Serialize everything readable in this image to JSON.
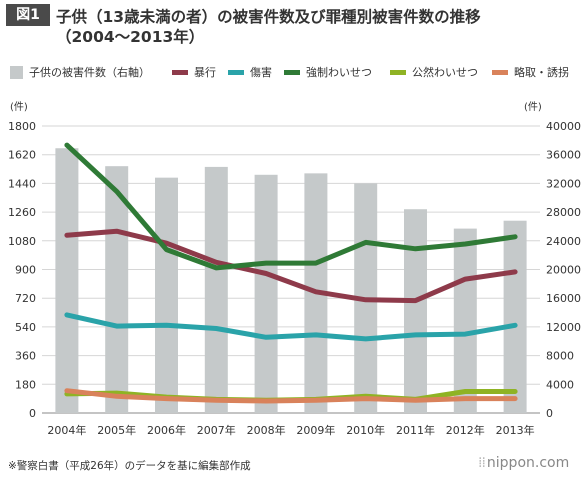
{
  "header": {
    "badge": "図1",
    "title_line1": "子供（13歳未満の者）の被害件数及び罪種別被害件数の推移",
    "title_line2": "（2004〜2013年）"
  },
  "footer": {
    "source": "※警察白書（平成26年）のデータを基に編集部作成",
    "logo": "nippon.com"
  },
  "chart_data": {
    "type": "bar+line",
    "title": "子供（13歳未満の者）の被害件数及び罪種別被害件数の推移（2004〜2013年）",
    "categories": [
      "2004年",
      "2005年",
      "2006年",
      "2007年",
      "2008年",
      "2009年",
      "2010年",
      "2011年",
      "2012年",
      "2013年"
    ],
    "left_axis": {
      "unit": "(件)",
      "min": 0,
      "max": 1800,
      "ticks": [
        "0",
        "180",
        "360",
        "540",
        "720",
        "900",
        "1080",
        "1260",
        "1440",
        "1620",
        "1800"
      ]
    },
    "right_axis": {
      "unit": "(件)",
      "min": 0,
      "max": 40000,
      "ticks": [
        "0",
        "4000",
        "8000",
        "12000",
        "16000",
        "20000",
        "24000",
        "28000",
        "32000",
        "36000",
        "40000"
      ]
    },
    "grid": true,
    "legend_position": "top",
    "bar_series": {
      "name": "子供の被害件数（右軸）",
      "color": "#c5c9ca",
      "axis": "right",
      "values": [
        36900,
        34400,
        32800,
        34300,
        33200,
        33400,
        32000,
        28400,
        25700,
        26800
      ]
    },
    "line_series": [
      {
        "name": "暴行",
        "color": "#8e3a4a",
        "values": [
          1115,
          1140,
          1065,
          945,
          875,
          760,
          710,
          705,
          840,
          885
        ]
      },
      {
        "name": "傷害",
        "color": "#2aa3a9",
        "values": [
          615,
          545,
          550,
          530,
          475,
          490,
          465,
          490,
          495,
          550
        ]
      },
      {
        "name": "強制わいせつ",
        "color": "#2f7a36",
        "values": [
          1680,
          1390,
          1025,
          910,
          940,
          940,
          1070,
          1030,
          1060,
          1105
        ]
      },
      {
        "name": "公然わいせつ",
        "color": "#8fb324",
        "values": [
          120,
          125,
          100,
          85,
          80,
          85,
          105,
          85,
          135,
          135
        ]
      },
      {
        "name": "略取・誘拐",
        "color": "#d9825b",
        "values": [
          140,
          105,
          90,
          80,
          75,
          80,
          90,
          80,
          90,
          90
        ]
      }
    ]
  }
}
